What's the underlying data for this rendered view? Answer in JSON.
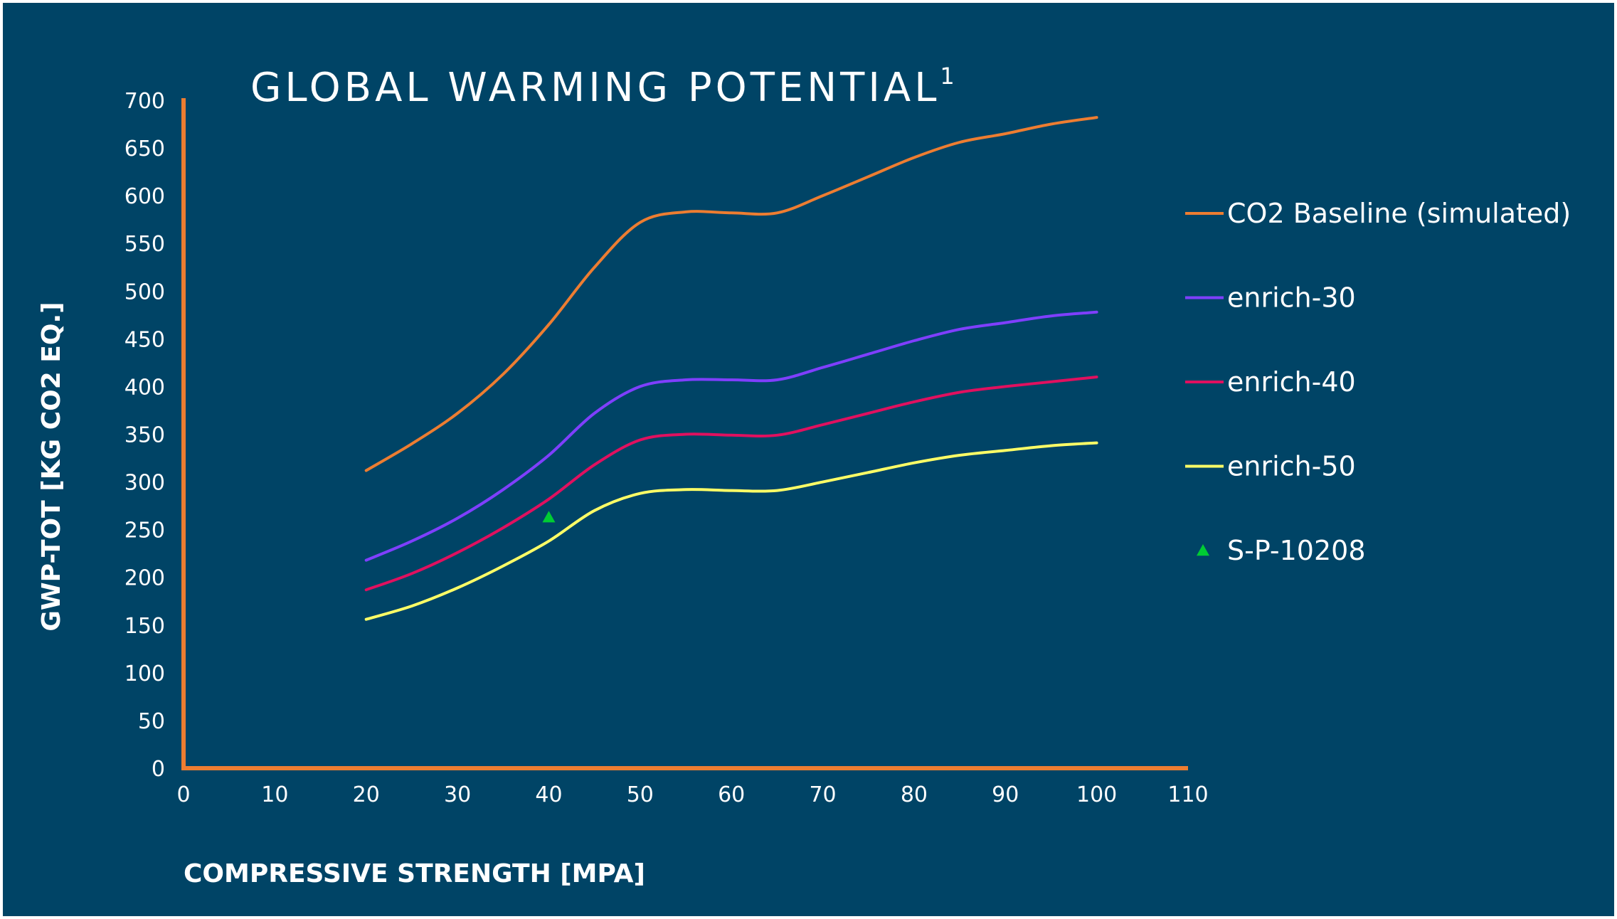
{
  "chart_data": {
    "type": "line",
    "title": "GLOBAL WARMING POTENTIAL",
    "title_superscript": "1",
    "xlabel": "COMPRESSIVE STRENGTH [MPA]",
    "ylabel": "GWP-TOT [KG CO2 EQ.]",
    "xlim": [
      0,
      110
    ],
    "ylim": [
      0,
      700
    ],
    "x_ticks": [
      0,
      10,
      20,
      30,
      40,
      50,
      60,
      70,
      80,
      90,
      100,
      110
    ],
    "y_ticks": [
      0,
      50,
      100,
      150,
      200,
      250,
      300,
      350,
      400,
      450,
      500,
      550,
      600,
      650,
      700
    ],
    "grid": false,
    "legend_position": "right",
    "axis_color": "#ED7D31",
    "series": [
      {
        "name": "CO2 Baseline (simulated)",
        "color": "#ED7D31",
        "x": [
          20,
          25,
          30,
          35,
          40,
          45,
          50,
          55,
          60,
          65,
          70,
          75,
          80,
          85,
          90,
          95,
          100
        ],
        "y": [
          312,
          340,
          372,
          413,
          465,
          525,
          572,
          583,
          582,
          582,
          600,
          620,
          640,
          656,
          665,
          675,
          682
        ]
      },
      {
        "name": "enrich-30",
        "color": "#7F3FFF",
        "x": [
          20,
          25,
          30,
          35,
          40,
          45,
          50,
          55,
          60,
          65,
          70,
          75,
          80,
          85,
          90,
          95,
          100
        ],
        "y": [
          218,
          238,
          262,
          292,
          328,
          372,
          400,
          407,
          407,
          407,
          420,
          434,
          448,
          460,
          467,
          474,
          478
        ]
      },
      {
        "name": "enrich-40",
        "color": "#E0105F",
        "x": [
          20,
          25,
          30,
          35,
          40,
          45,
          50,
          55,
          60,
          65,
          70,
          75,
          80,
          85,
          90,
          95,
          100
        ],
        "y": [
          187,
          204,
          226,
          252,
          282,
          318,
          344,
          350,
          349,
          349,
          360,
          372,
          384,
          394,
          400,
          405,
          410
        ]
      },
      {
        "name": "enrich-50",
        "color": "#FFFF66",
        "x": [
          20,
          25,
          30,
          35,
          40,
          45,
          50,
          55,
          60,
          65,
          70,
          75,
          80,
          85,
          90,
          95,
          100
        ],
        "y": [
          156,
          170,
          189,
          212,
          238,
          270,
          288,
          292,
          291,
          291,
          300,
          310,
          320,
          328,
          333,
          338,
          341
        ]
      },
      {
        "name": "S-P-10208",
        "color": "#00CC33",
        "marker": "triangle",
        "x": [
          40
        ],
        "y": [
          263
        ]
      }
    ]
  }
}
